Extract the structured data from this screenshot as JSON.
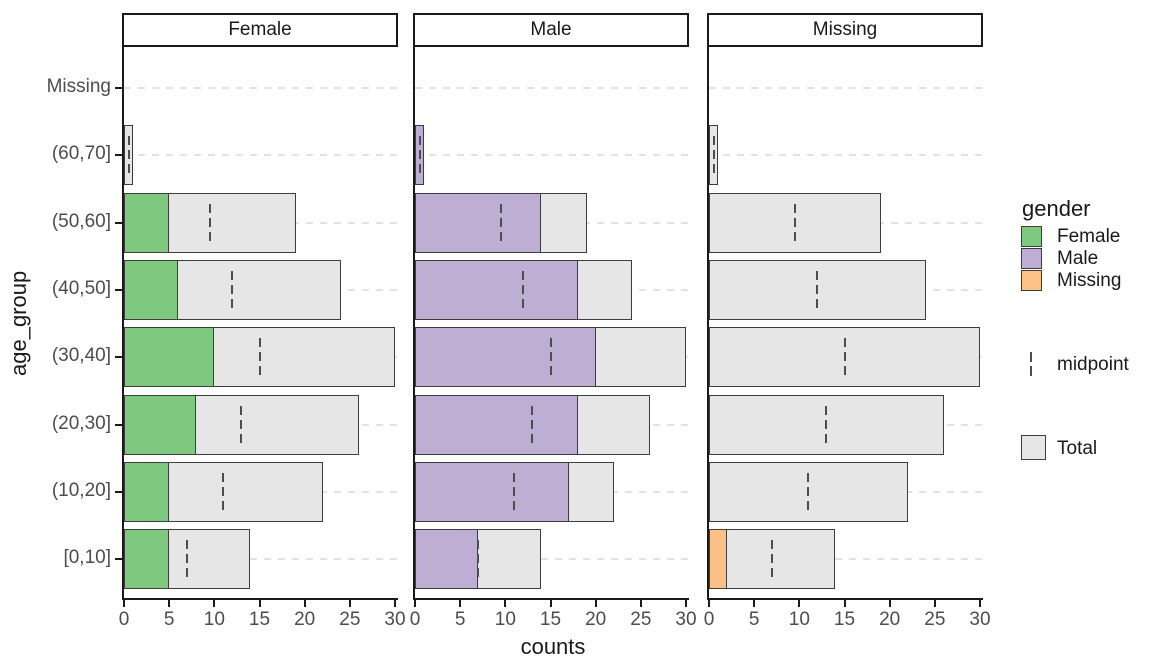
{
  "chart_data": {
    "type": "bar",
    "orientation": "horizontal",
    "title": "",
    "xlabel": "counts",
    "ylabel": "age_group",
    "xlim": [
      0,
      30
    ],
    "x_ticks": [
      0,
      5,
      10,
      15,
      20,
      25,
      30
    ],
    "grid": "horizontal dashed, no vertical gridlines",
    "legend_position": "right",
    "facet_variable": "gender",
    "facets": [
      {
        "label": "Female"
      },
      {
        "label": "Male"
      },
      {
        "label": "Missing"
      }
    ],
    "categories": [
      "Missing",
      "(60,70]",
      "(50,60]",
      "(40,50]",
      "(30,40]",
      "(20,30]",
      "(10,20]",
      "[0,10]"
    ],
    "series": [
      {
        "name": "Female",
        "color": "#7FC97F",
        "values": [
          0,
          0,
          5,
          6,
          10,
          8,
          5,
          5
        ]
      },
      {
        "name": "Male",
        "color": "#BEAED4",
        "values": [
          0,
          1,
          14,
          18,
          20,
          18,
          17,
          7
        ]
      },
      {
        "name": "Missing",
        "color": "#FDC086",
        "values": [
          0,
          0,
          0,
          0,
          0,
          0,
          0,
          2
        ]
      }
    ],
    "total": {
      "name": "Total",
      "color": "#E6E6E6",
      "values": [
        0,
        1,
        19,
        24,
        30,
        26,
        22,
        14
      ]
    },
    "midpoint": {
      "name": "midpoint",
      "values": [
        null,
        0.5,
        9.5,
        12,
        15,
        13,
        11,
        7
      ]
    },
    "legend": {
      "title": "gender",
      "items": [
        {
          "label": "Female",
          "color": "#7FC97F"
        },
        {
          "label": "Male",
          "color": "#BEAED4"
        },
        {
          "label": "Missing",
          "color": "#FDC086"
        }
      ],
      "midpoint_label": "midpoint",
      "total_label": "Total"
    },
    "colors": {
      "bar_border": "#3D3D3D",
      "axis_line": "#1A1A1A",
      "tick_text": "#4D4D4D",
      "gridline": "#E3E3E3",
      "strip_background": "#FFFFFF",
      "midpoint_marker": "#4D4D4D",
      "total_fill": "#E6E6E6"
    }
  }
}
